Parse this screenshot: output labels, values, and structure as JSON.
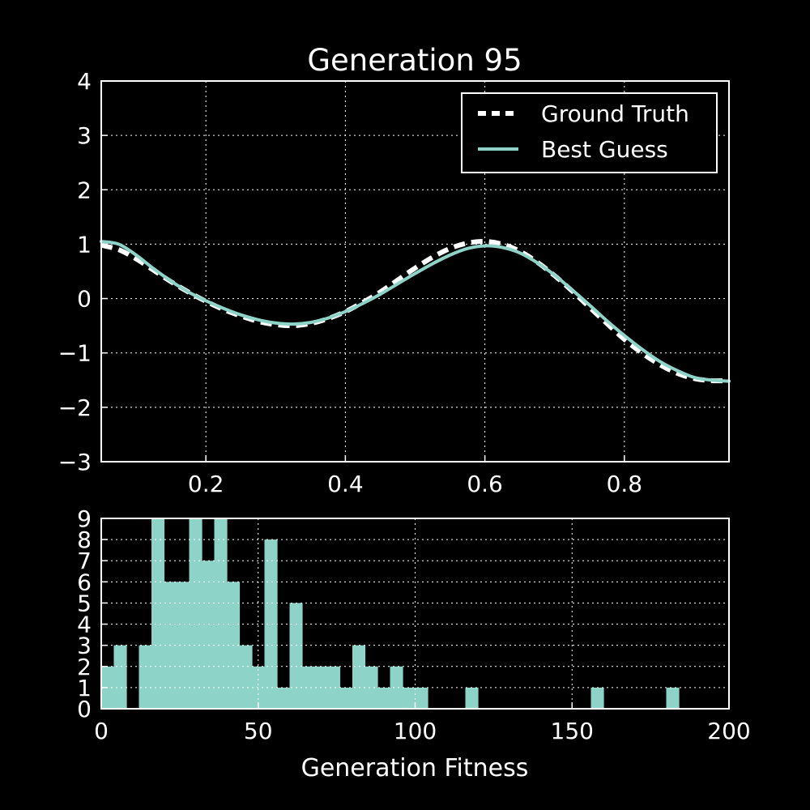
{
  "colors": {
    "background": "#000000",
    "foreground": "#ffffff",
    "accent": "#8dd3c7",
    "grid": "#ffffff"
  },
  "chart_data": [
    {
      "type": "line",
      "title": "Generation 95",
      "xlabel": "",
      "ylabel": "",
      "xlim": [
        0.05,
        0.95
      ],
      "ylim": [
        -3,
        4
      ],
      "xticks": [
        "0.2",
        "0.4",
        "0.6",
        "0.8"
      ],
      "yticks": [
        "−3",
        "−2",
        "−1",
        "0",
        "1",
        "2",
        "3",
        "4"
      ],
      "grid": true,
      "legend_position": "top-right",
      "series": [
        {
          "name": "Ground Truth",
          "style": "dashed",
          "color": "#ffffff",
          "x": [
            0.05,
            0.075,
            0.1,
            0.125,
            0.15,
            0.175,
            0.2,
            0.225,
            0.25,
            0.275,
            0.3,
            0.325,
            0.35,
            0.375,
            0.4,
            0.425,
            0.45,
            0.475,
            0.5,
            0.525,
            0.55,
            0.575,
            0.6,
            0.625,
            0.65,
            0.675,
            0.7,
            0.725,
            0.75,
            0.775,
            0.8,
            0.825,
            0.85,
            0.875,
            0.9,
            0.925,
            0.95
          ],
          "y": [
            0.98,
            0.9,
            0.73,
            0.52,
            0.31,
            0.12,
            -0.05,
            -0.2,
            -0.32,
            -0.42,
            -0.48,
            -0.5,
            -0.46,
            -0.37,
            -0.24,
            -0.07,
            0.12,
            0.34,
            0.56,
            0.76,
            0.92,
            1.02,
            1.05,
            1.0,
            0.87,
            0.67,
            0.42,
            0.14,
            -0.16,
            -0.46,
            -0.75,
            -1.0,
            -1.21,
            -1.37,
            -1.47,
            -1.51,
            -1.51
          ]
        },
        {
          "name": "Best Guess",
          "style": "solid",
          "color": "#8dd3c7",
          "x": [
            0.05,
            0.075,
            0.1,
            0.125,
            0.15,
            0.175,
            0.2,
            0.225,
            0.25,
            0.275,
            0.3,
            0.325,
            0.35,
            0.375,
            0.4,
            0.425,
            0.45,
            0.475,
            0.5,
            0.525,
            0.55,
            0.575,
            0.6,
            0.625,
            0.65,
            0.675,
            0.7,
            0.725,
            0.75,
            0.775,
            0.8,
            0.825,
            0.85,
            0.875,
            0.9,
            0.925,
            0.95
          ],
          "y": [
            1.05,
            1.0,
            0.8,
            0.55,
            0.32,
            0.12,
            -0.04,
            -0.18,
            -0.3,
            -0.39,
            -0.45,
            -0.47,
            -0.44,
            -0.36,
            -0.24,
            -0.09,
            0.08,
            0.27,
            0.46,
            0.64,
            0.8,
            0.92,
            0.97,
            0.94,
            0.84,
            0.66,
            0.43,
            0.16,
            -0.12,
            -0.41,
            -0.68,
            -0.93,
            -1.15,
            -1.32,
            -1.45,
            -1.5,
            -1.52
          ]
        }
      ]
    },
    {
      "type": "bar",
      "title": "",
      "xlabel": "Generation Fitness",
      "ylabel": "",
      "xlim": [
        0,
        200
      ],
      "ylim": [
        0,
        9
      ],
      "xticks": [
        "0",
        "50",
        "100",
        "150",
        "200"
      ],
      "yticks": [
        "0",
        "1",
        "2",
        "3",
        "4",
        "5",
        "6",
        "7",
        "8",
        "9"
      ],
      "grid": true,
      "color": "#8dd3c7",
      "bin_width": 4,
      "bin_starts": [
        0,
        4,
        8,
        12,
        16,
        20,
        24,
        28,
        32,
        36,
        40,
        44,
        48,
        52,
        56,
        60,
        64,
        68,
        72,
        76,
        80,
        84,
        88,
        92,
        96,
        100,
        104,
        108,
        112,
        116,
        120,
        124,
        128,
        132,
        136,
        140,
        144,
        148,
        152,
        156,
        160,
        164,
        168,
        172,
        176,
        180,
        184,
        188,
        192,
        196
      ],
      "values": [
        2,
        3,
        0,
        3,
        9,
        6,
        6,
        9,
        7,
        9,
        6,
        3,
        2,
        8,
        1,
        5,
        2,
        2,
        2,
        1,
        3,
        2,
        1,
        2,
        1,
        1,
        0,
        0,
        0,
        1,
        0,
        0,
        0,
        0,
        0,
        0,
        0,
        0,
        0,
        1,
        0,
        0,
        0,
        0,
        0,
        1,
        0,
        0,
        0,
        0
      ]
    }
  ]
}
